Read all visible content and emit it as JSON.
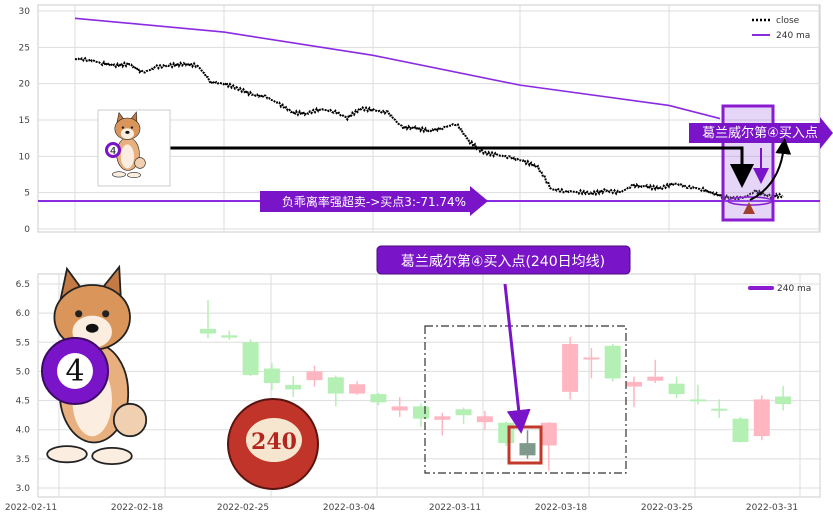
{
  "chart_data": [
    {
      "type": "line",
      "title": "",
      "ylim": [
        0,
        30
      ],
      "yticks": [
        "0",
        "5",
        "10",
        "15",
        "20",
        "25",
        "30"
      ],
      "grid": true,
      "legend": {
        "placement": "top-right",
        "entries": [
          "close",
          "240 ma"
        ]
      },
      "series": [
        {
          "name": "close",
          "color": "#000000",
          "values": [
            23.4,
            23.3,
            22.8,
            22.5,
            22.7,
            21.5,
            22.3,
            22.5,
            22.7,
            22.5,
            20.2,
            20.0,
            19.3,
            18.5,
            18.2,
            17.2,
            16.0,
            15.9,
            16.5,
            16.2,
            15.3,
            16.6,
            16.3,
            16.0,
            14.0,
            13.9,
            13.5,
            13.9,
            14.5,
            12.0,
            10.5,
            10.2,
            9.8,
            9.3,
            8.5,
            5.5,
            5.2,
            5.1,
            4.9,
            5.3,
            5.0,
            6.0,
            5.8,
            5.6,
            6.3,
            5.8,
            5.5,
            4.8,
            4.3,
            4.2,
            5.2,
            4.5,
            4.6
          ]
        },
        {
          "name": "240 ma",
          "color": "#8a2be2",
          "values": [
            29.0,
            27.1,
            23.9,
            19.8,
            17.0,
            15.2
          ]
        }
      ],
      "hline": {
        "value": 3.85,
        "color": "#8a2be2"
      },
      "annotations": {
        "oversold_banner": "负乖离率强超卖->买点3:-71.74%",
        "buy_banner": "葛兰威尔第④买入点"
      }
    },
    {
      "type": "candlestick",
      "title": "葛兰威尔第④买入点(240日均线)",
      "ylim": [
        2.9,
        6.65
      ],
      "yticks": [
        "3.0",
        "3.5",
        "4.0",
        "4.5",
        "5.0",
        "5.5",
        "6.0",
        "6.5"
      ],
      "xticks": [
        "2022-02-11",
        "2022-02-18",
        "2022-02-25",
        "2022-03-04",
        "2022-03-11",
        "2022-03-18",
        "2022-03-25",
        "2022-03-31"
      ],
      "grid": true,
      "legend": {
        "placement": "top-right",
        "entries": [
          "240 ma"
        ]
      },
      "colors": {
        "up": "#ffb6c1",
        "down": "#b4f0b4",
        "highlight": "#7f9a8c"
      },
      "highlight_index": 15,
      "ohlc": [
        [
          5.73,
          6.22,
          5.57,
          5.65
        ],
        [
          5.62,
          5.7,
          5.54,
          5.58
        ],
        [
          5.5,
          5.55,
          4.92,
          4.94
        ],
        [
          5.05,
          5.14,
          4.68,
          4.8
        ],
        [
          4.77,
          4.92,
          4.56,
          4.69
        ],
        [
          4.85,
          5.1,
          4.74,
          5.0
        ],
        [
          4.9,
          4.93,
          4.4,
          4.62
        ],
        [
          4.62,
          4.83,
          4.6,
          4.78
        ],
        [
          4.61,
          4.63,
          4.42,
          4.47
        ],
        [
          4.33,
          4.56,
          4.22,
          4.4
        ],
        [
          4.4,
          4.45,
          4.05,
          4.19
        ],
        [
          4.17,
          4.29,
          3.9,
          4.23
        ],
        [
          4.35,
          4.38,
          4.1,
          4.25
        ],
        [
          4.13,
          4.32,
          4.0,
          4.23
        ],
        [
          4.12,
          4.14,
          3.72,
          3.77
        ],
        [
          3.77,
          3.99,
          3.5,
          3.56
        ],
        [
          3.73,
          4.13,
          3.3,
          4.12
        ],
        [
          4.65,
          5.59,
          4.52,
          5.47
        ],
        [
          5.22,
          5.4,
          4.88,
          5.24
        ],
        [
          5.44,
          5.47,
          4.83,
          4.88
        ],
        [
          4.74,
          4.91,
          4.39,
          4.82
        ],
        [
          4.84,
          5.2,
          4.8,
          4.91
        ],
        [
          4.79,
          4.91,
          4.54,
          4.61
        ],
        [
          4.52,
          4.77,
          4.43,
          4.5
        ],
        [
          4.36,
          4.52,
          4.2,
          4.34
        ],
        [
          4.19,
          4.22,
          3.78,
          3.79
        ],
        [
          3.89,
          4.59,
          3.82,
          4.52
        ],
        [
          4.57,
          4.75,
          4.33,
          4.44
        ]
      ],
      "badges": [
        "4",
        "240"
      ]
    }
  ]
}
